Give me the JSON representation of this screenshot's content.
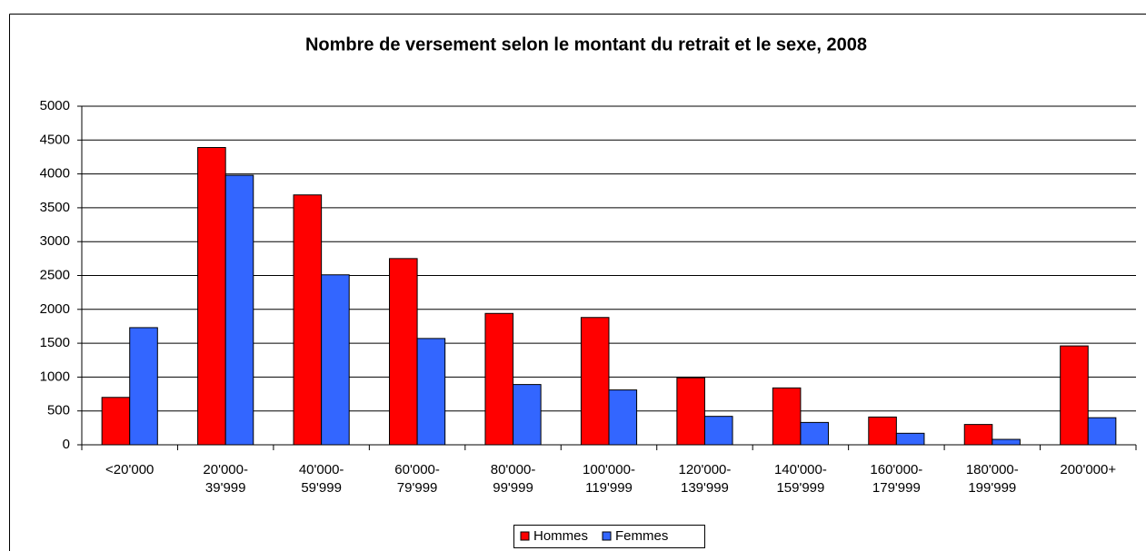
{
  "chart_data": {
    "type": "bar",
    "title": "Nombre de versement selon le montant du retrait et le sexe, 2008",
    "categories": [
      [
        "<20'000"
      ],
      [
        "20'000-",
        "39'999"
      ],
      [
        "40'000-",
        "59'999"
      ],
      [
        "60'000-",
        "79'999"
      ],
      [
        "80'000-",
        "99'999"
      ],
      [
        "100'000-",
        "119'999"
      ],
      [
        "120'000-",
        "139'999"
      ],
      [
        "140'000-",
        "159'999"
      ],
      [
        "160'000-",
        "179'999"
      ],
      [
        "180'000-",
        "199'999"
      ],
      [
        "200'000+"
      ]
    ],
    "series": [
      {
        "name": "Hommes",
        "color": "#ff0000",
        "values": [
          700,
          4390,
          3690,
          2750,
          1940,
          1880,
          990,
          840,
          410,
          300,
          1460
        ]
      },
      {
        "name": "Femmes",
        "color": "#3366ff",
        "values": [
          1730,
          3980,
          2510,
          1570,
          890,
          810,
          420,
          330,
          170,
          80,
          400
        ]
      }
    ],
    "ylim": [
      0,
      5000
    ],
    "yticks": [
      0,
      500,
      1000,
      1500,
      2000,
      2500,
      3000,
      3500,
      4000,
      4500,
      5000
    ],
    "grid": true,
    "legend": "bottom"
  }
}
